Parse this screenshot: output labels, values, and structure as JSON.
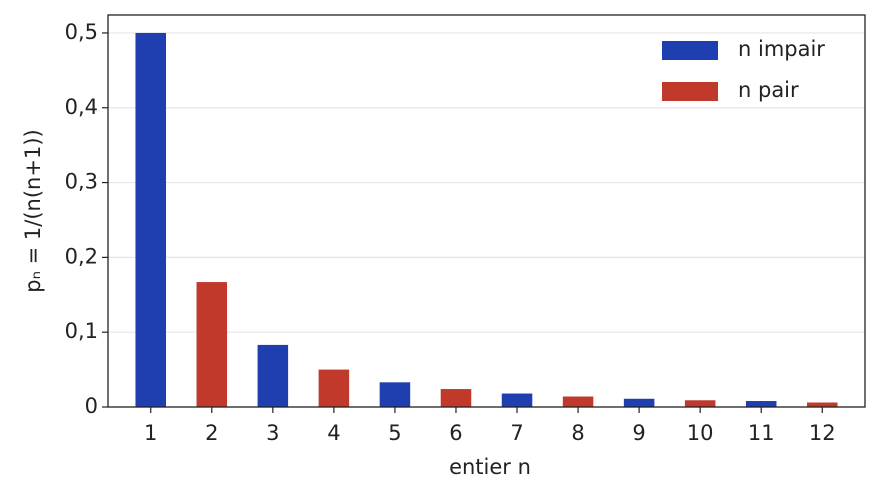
{
  "chart_data": {
    "type": "bar",
    "x_label": "entier n",
    "y_label": "pₙ = 1/(n(n+1))",
    "categories": [
      "1",
      "2",
      "3",
      "4",
      "5",
      "6",
      "7",
      "8",
      "9",
      "10",
      "11",
      "12"
    ],
    "series": [
      {
        "name": "n impair",
        "color": "#1f3fb0",
        "values": [
          0.5,
          null,
          0.083,
          null,
          0.033,
          null,
          0.018,
          null,
          0.011,
          null,
          0.008,
          null
        ]
      },
      {
        "name": "n pair",
        "color": "#c0392b",
        "values": [
          null,
          0.167,
          null,
          0.05,
          null,
          0.024,
          null,
          0.014,
          null,
          0.009,
          null,
          0.006
        ]
      }
    ],
    "ylim": [
      0,
      0.524
    ],
    "yticks": [
      0,
      {
        "value": 0.1,
        "label": "0,1"
      },
      {
        "value": 0.2,
        "label": "0,2"
      },
      {
        "value": 0.3,
        "label": "0,3"
      },
      {
        "value": 0.4,
        "label": "0,4"
      },
      {
        "value": 0.5,
        "label": "0,5"
      }
    ],
    "grid": true,
    "legend": "upper right"
  }
}
